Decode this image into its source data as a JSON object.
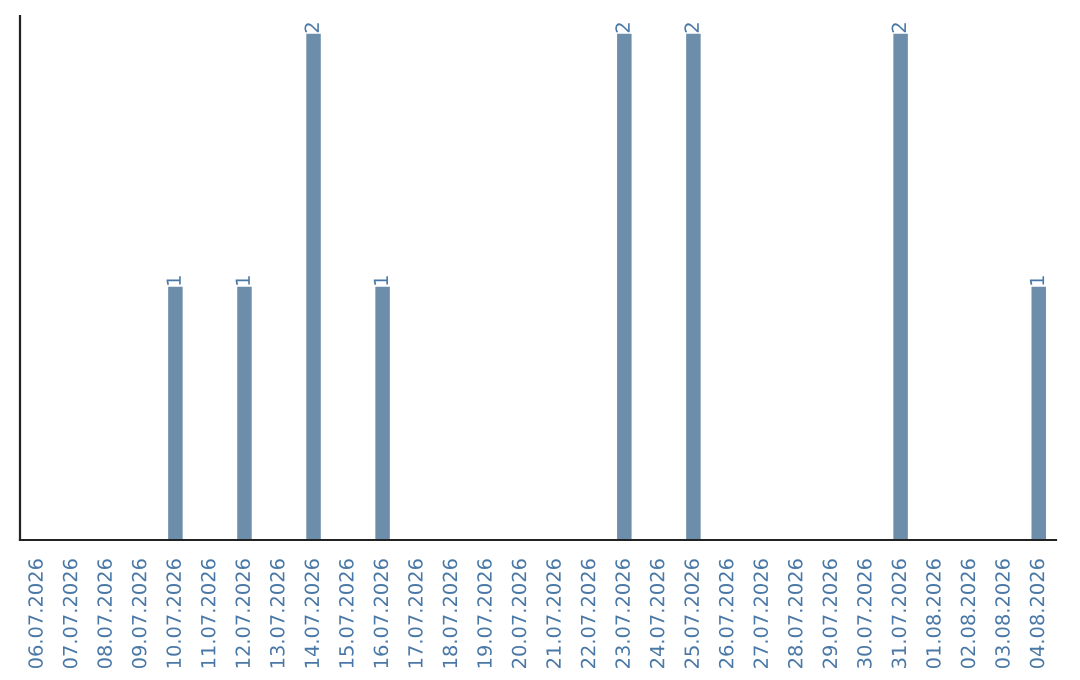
{
  "chart_data": {
    "type": "bar",
    "categories": [
      "06.07.2026",
      "07.07.2026",
      "08.07.2026",
      "09.07.2026",
      "10.07.2026",
      "11.07.2026",
      "12.07.2026",
      "13.07.2026",
      "14.07.2026",
      "15.07.2026",
      "16.07.2026",
      "17.07.2026",
      "18.07.2026",
      "19.07.2026",
      "20.07.2026",
      "21.07.2026",
      "22.07.2026",
      "23.07.2026",
      "24.07.2026",
      "25.07.2026",
      "26.07.2026",
      "27.07.2026",
      "28.07.2026",
      "29.07.2026",
      "30.07.2026",
      "31.07.2026",
      "01.08.2026",
      "02.08.2026",
      "03.08.2026",
      "04.08.2026"
    ],
    "values": [
      0,
      0,
      0,
      0,
      1,
      0,
      1,
      0,
      2,
      0,
      1,
      0,
      0,
      0,
      0,
      0,
      0,
      2,
      0,
      2,
      0,
      0,
      0,
      0,
      0,
      2,
      0,
      0,
      0,
      1
    ],
    "value_labels": [
      null,
      null,
      null,
      null,
      "1",
      null,
      "1",
      null,
      "2",
      null,
      "1",
      null,
      null,
      null,
      null,
      null,
      null,
      "2",
      null,
      "2",
      null,
      null,
      null,
      null,
      null,
      "2",
      null,
      null,
      null,
      "1"
    ],
    "color": "#6d8eab",
    "ylim": [
      0,
      2.07
    ],
    "tick_labels": "x",
    "grid": false,
    "legend": false
  }
}
